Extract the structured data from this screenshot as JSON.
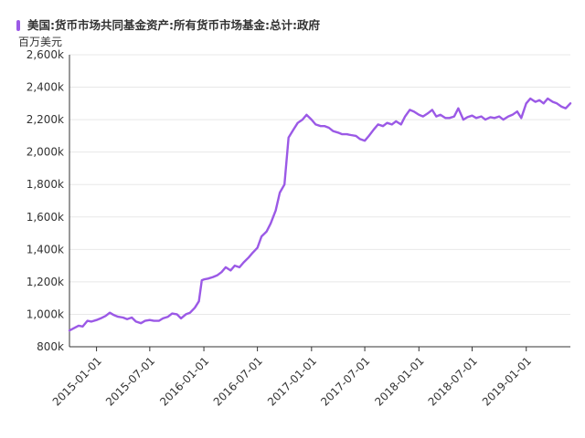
{
  "chart_data": {
    "type": "line",
    "title": "",
    "xlabel": "",
    "ylabel": "百万美元",
    "unit_label": "百万美元",
    "ylim": [
      800,
      2600
    ],
    "yticks": [
      800,
      1000,
      1200,
      1400,
      1600,
      1800,
      2000,
      2200,
      2400,
      2600
    ],
    "ytick_labels": [
      "800k",
      "1,000k",
      "1,200k",
      "1,400k",
      "1,600k",
      "1,800k",
      "2,000k",
      "2,200k",
      "2,400k",
      "2,600k"
    ],
    "xlim": [
      "2014-10-01",
      "2019-05-31"
    ],
    "xticks": [
      "2015-01-01",
      "2015-07-01",
      "2016-01-01",
      "2016-07-01",
      "2017-01-01",
      "2017-07-01",
      "2018-01-01",
      "2018-07-01",
      "2019-01-01"
    ],
    "grid": true,
    "legend_position": "top-left",
    "series": [
      {
        "name": "美国:货币市场共同基金资产:所有货币市场基金:总计:政府",
        "color": "#9b59e6",
        "x": [
          "2014-10-01",
          "2014-11-01",
          "2014-11-15",
          "2014-12-01",
          "2014-12-15",
          "2015-01-01",
          "2015-01-15",
          "2015-02-01",
          "2015-02-15",
          "2015-03-01",
          "2015-03-15",
          "2015-04-01",
          "2015-04-08",
          "2015-04-15",
          "2015-05-01",
          "2015-05-15",
          "2015-06-01",
          "2015-06-15",
          "2015-07-01",
          "2015-07-15",
          "2015-08-01",
          "2015-08-15",
          "2015-09-01",
          "2015-09-15",
          "2015-10-01",
          "2015-10-15",
          "2015-11-01",
          "2015-11-15",
          "2015-12-01",
          "2015-12-15",
          "2015-12-25",
          "2016-01-01",
          "2016-01-15",
          "2016-02-01",
          "2016-02-15",
          "2016-03-01",
          "2016-03-15",
          "2016-04-01",
          "2016-04-15",
          "2016-05-01",
          "2016-05-15",
          "2016-06-01",
          "2016-06-15",
          "2016-07-01",
          "2016-07-15",
          "2016-08-01",
          "2016-08-15",
          "2016-09-01",
          "2016-09-15",
          "2016-10-01",
          "2016-10-15",
          "2016-11-01",
          "2016-11-15",
          "2016-12-01",
          "2016-12-15",
          "2017-01-01",
          "2017-01-15",
          "2017-02-01",
          "2017-02-15",
          "2017-03-01",
          "2017-03-15",
          "2017-04-01",
          "2017-04-15",
          "2017-05-01",
          "2017-05-15",
          "2017-06-01",
          "2017-06-15",
          "2017-07-01",
          "2017-07-15",
          "2017-08-01",
          "2017-08-15",
          "2017-09-01",
          "2017-09-15",
          "2017-10-01",
          "2017-10-15",
          "2017-11-01",
          "2017-11-15",
          "2017-12-01",
          "2017-12-15",
          "2018-01-01",
          "2018-01-15",
          "2018-02-01",
          "2018-02-15",
          "2018-03-01",
          "2018-03-15",
          "2018-04-01",
          "2018-04-15",
          "2018-05-01",
          "2018-05-15",
          "2018-06-01",
          "2018-06-15",
          "2018-07-01",
          "2018-07-15",
          "2018-08-01",
          "2018-08-15",
          "2018-09-01",
          "2018-09-15",
          "2018-10-01",
          "2018-10-15",
          "2018-11-01",
          "2018-11-15",
          "2018-12-01",
          "2018-12-15",
          "2019-01-01",
          "2019-01-15",
          "2019-02-01",
          "2019-02-15",
          "2019-03-01",
          "2019-03-15",
          "2019-04-01",
          "2019-04-15",
          "2019-05-01",
          "2019-05-15",
          "2019-05-31"
        ],
        "values": [
          900,
          930,
          925,
          960,
          955,
          965,
          975,
          990,
          1010,
          995,
          985,
          980,
          975,
          970,
          980,
          955,
          945,
          960,
          965,
          960,
          960,
          975,
          985,
          1005,
          1000,
          975,
          1000,
          1010,
          1040,
          1080,
          1210,
          1215,
          1220,
          1230,
          1240,
          1260,
          1290,
          1270,
          1300,
          1290,
          1320,
          1350,
          1380,
          1410,
          1480,
          1510,
          1560,
          1640,
          1750,
          1800,
          2090,
          2140,
          2180,
          2200,
          2230,
          2200,
          2170,
          2160,
          2160,
          2150,
          2130,
          2120,
          2110,
          2110,
          2105,
          2100,
          2080,
          2070,
          2100,
          2140,
          2170,
          2160,
          2180,
          2170,
          2190,
          2170,
          2220,
          2260,
          2250,
          2230,
          2220,
          2240,
          2260,
          2220,
          2230,
          2210,
          2210,
          2220,
          2270,
          2200,
          2215,
          2225,
          2210,
          2220,
          2200,
          2215,
          2210,
          2220,
          2200,
          2220,
          2230,
          2250,
          2210,
          2300,
          2330,
          2310,
          2320,
          2300,
          2330,
          2310,
          2300,
          2280,
          2270,
          2300
        ]
      }
    ]
  }
}
